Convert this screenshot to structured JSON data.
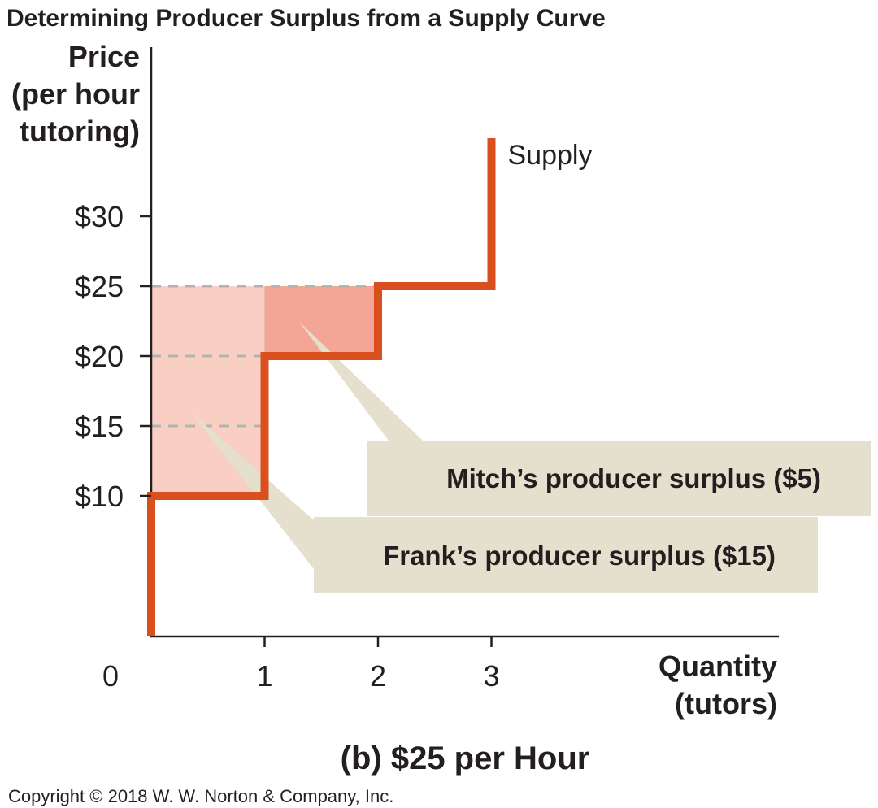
{
  "chart_data": {
    "type": "line",
    "title": "Determining Producer Surplus from a Supply Curve",
    "subtitle": "(b) $25 per Hour",
    "ylabel_lines": [
      "Price",
      "(per hour",
      "tutoring)"
    ],
    "xlabel_lines": [
      "Quantity",
      "(tutors)"
    ],
    "ylim": [
      0,
      35
    ],
    "xlim": [
      0,
      5.3
    ],
    "y_ticks": [
      {
        "value": 10,
        "label": "$10"
      },
      {
        "value": 15,
        "label": "$15"
      },
      {
        "value": 20,
        "label": "$20"
      },
      {
        "value": 25,
        "label": "$25"
      },
      {
        "value": 30,
        "label": "$30"
      }
    ],
    "x_ticks": [
      {
        "value": 1,
        "label": "1"
      },
      {
        "value": 2,
        "label": "2"
      },
      {
        "value": 3,
        "label": "3"
      }
    ],
    "origin_label": "0",
    "series": [
      {
        "name": "Supply",
        "shape": "step",
        "points": [
          [
            0,
            0
          ],
          [
            0,
            10
          ],
          [
            1,
            10
          ],
          [
            1,
            20
          ],
          [
            2,
            20
          ],
          [
            2,
            25
          ],
          [
            3,
            25
          ],
          [
            3,
            36
          ]
        ]
      }
    ],
    "reference_lines": [
      {
        "y": 25,
        "x_from": 0,
        "x_to": 2
      },
      {
        "y": 20,
        "x_from": 0,
        "x_to": 1
      },
      {
        "y": 15,
        "x_from": 0,
        "x_to": 1
      }
    ],
    "market_price": 25,
    "surplus_areas": [
      {
        "x_from": 0,
        "x_to": 1,
        "y_from": 10,
        "y_to": 25,
        "color": "#f9cfc4"
      },
      {
        "x_from": 1,
        "x_to": 2,
        "y_from": 20,
        "y_to": 25,
        "color": "#f4a596"
      }
    ],
    "annotations": [
      {
        "text": "Mitch’s producer surplus ($5)",
        "points_to": [
          1.3,
          22.5
        ]
      },
      {
        "text": "Frank’s producer surplus ($15)",
        "points_to": [
          0.35,
          16
        ]
      }
    ],
    "copyright": "Copyright © 2018 W. W. Norton & Company, Inc.",
    "colors": {
      "supply": "#d9501e",
      "callout": "#e4e0cd",
      "guide": "#b3b3b3",
      "axis": "#231f20"
    }
  }
}
